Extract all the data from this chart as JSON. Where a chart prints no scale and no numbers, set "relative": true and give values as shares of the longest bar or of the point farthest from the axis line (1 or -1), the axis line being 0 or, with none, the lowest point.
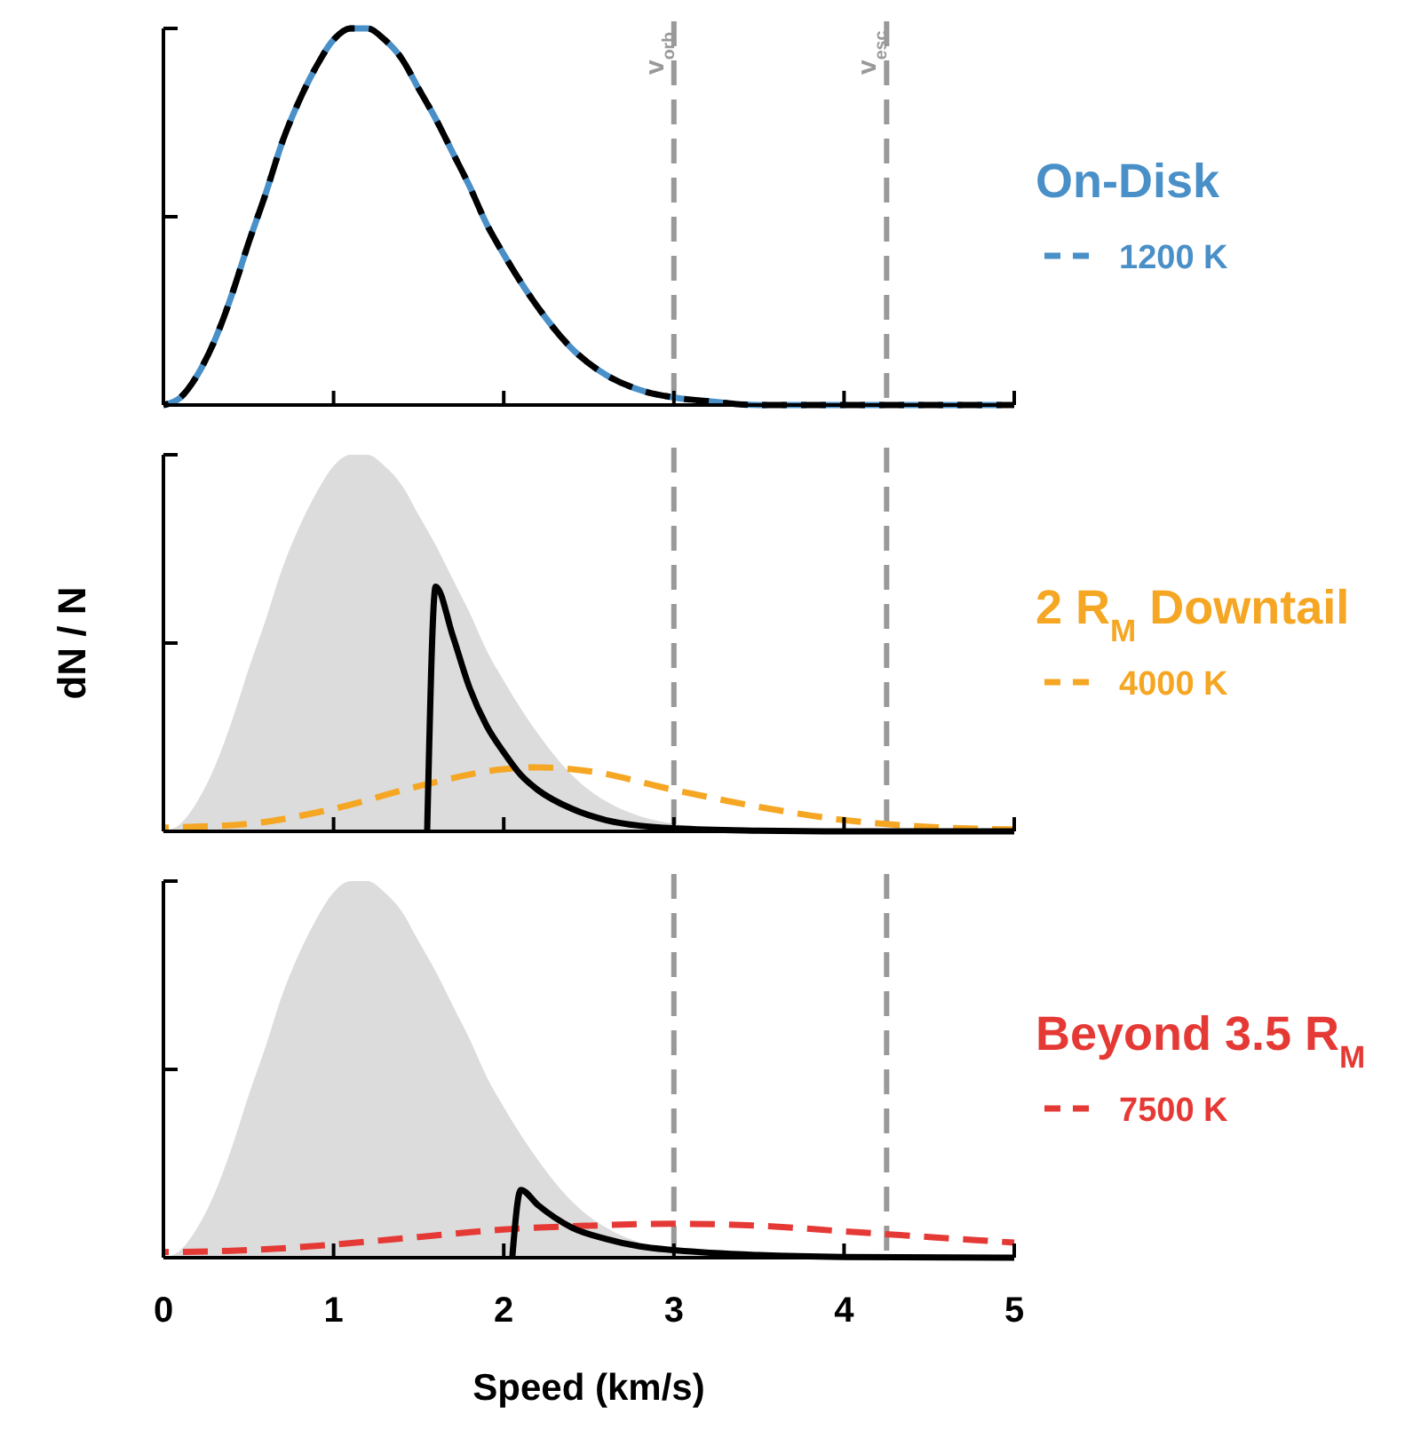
{
  "chart_data": [
    {
      "type": "line",
      "legend_title": "On-Disk",
      "relative": true,
      "xlim": [
        0,
        5
      ],
      "xticks": [
        0,
        1,
        2,
        3,
        4,
        5
      ],
      "tick_labels": false,
      "legend": "right",
      "grid": false,
      "ref_lines": [
        {
          "axis": "x",
          "value": 3,
          "label": "v$_{orb}$",
          "color": "#999999",
          "line_style": "dashed"
        },
        {
          "axis": "x",
          "value": 4.25,
          "label": "v$_{esc}$",
          "color": "#999999",
          "line_style": "dashed"
        }
      ],
      "series": [
        {
          "name": "1200 K",
          "color": "#4a90c8",
          "line_style": "dashed",
          "x": [
            0,
            0.1,
            0.2,
            0.3,
            0.4,
            0.5,
            0.6,
            0.7,
            0.8,
            0.9,
            1.0,
            1.1,
            1.15,
            1.2,
            1.3,
            1.4,
            1.5,
            1.6,
            1.7,
            1.8,
            1.9,
            2.0,
            2.2,
            2.4,
            2.6,
            2.8,
            3.0,
            3.2,
            3.5,
            4,
            5
          ],
          "values": [
            0,
            0.02,
            0.08,
            0.17,
            0.29,
            0.43,
            0.56,
            0.7,
            0.81,
            0.9,
            0.97,
            1.0,
            1.0,
            1.0,
            0.97,
            0.92,
            0.84,
            0.76,
            0.67,
            0.58,
            0.48,
            0.4,
            0.26,
            0.15,
            0.08,
            0.04,
            0.02,
            0.01,
            0,
            0,
            0
          ]
        },
        {
          "color": "#000000",
          "line_style": "dashed",
          "x": [
            0,
            0.1,
            0.2,
            0.3,
            0.4,
            0.5,
            0.6,
            0.7,
            0.8,
            0.9,
            1.0,
            1.1,
            1.15,
            1.2,
            1.3,
            1.4,
            1.5,
            1.6,
            1.7,
            1.8,
            1.9,
            2.0,
            2.2,
            2.4,
            2.6,
            2.8,
            3.0,
            3.2,
            3.5,
            4,
            5
          ],
          "values": [
            0,
            0.02,
            0.08,
            0.17,
            0.29,
            0.43,
            0.56,
            0.7,
            0.81,
            0.9,
            0.97,
            1.0,
            1.0,
            1.0,
            0.97,
            0.92,
            0.84,
            0.76,
            0.67,
            0.58,
            0.48,
            0.4,
            0.26,
            0.15,
            0.08,
            0.04,
            0.02,
            0.01,
            0,
            0,
            0
          ]
        }
      ]
    },
    {
      "type": "line",
      "legend_title": "2 R$_{M}$ Downtail",
      "ylabel": "dN / N",
      "relative": true,
      "xlim": [
        0,
        5
      ],
      "xticks": [
        0,
        1,
        2,
        3,
        4,
        5
      ],
      "tick_labels": false,
      "legend": "right",
      "grid": false,
      "ref_lines": [
        {
          "axis": "x",
          "value": 3,
          "label": null,
          "color": "#999999",
          "line_style": "dashed"
        },
        {
          "axis": "x",
          "value": 4.25,
          "label": null,
          "color": "#999999",
          "line_style": "dashed"
        }
      ],
      "series": [
        {
          "type": "area",
          "color": "#dcdcdc",
          "x": [
            0,
            0.1,
            0.2,
            0.3,
            0.4,
            0.5,
            0.6,
            0.7,
            0.8,
            0.9,
            1.0,
            1.1,
            1.15,
            1.2,
            1.3,
            1.4,
            1.5,
            1.6,
            1.7,
            1.8,
            1.9,
            2.0,
            2.2,
            2.4,
            2.6,
            2.8,
            3.0,
            3.2,
            3.5,
            4,
            5
          ],
          "values": [
            0,
            0.02,
            0.08,
            0.17,
            0.29,
            0.43,
            0.56,
            0.7,
            0.81,
            0.9,
            0.97,
            1.0,
            1.0,
            1.0,
            0.97,
            0.92,
            0.84,
            0.76,
            0.67,
            0.58,
            0.48,
            0.4,
            0.26,
            0.15,
            0.08,
            0.04,
            0.02,
            0.01,
            0,
            0,
            0
          ]
        },
        {
          "name": "4000 K",
          "color": "#f5a623",
          "line_style": "dashed",
          "x": [
            0,
            0.5,
            1,
            1.5,
            2,
            2.2,
            2.5,
            3,
            3.5,
            4,
            4.5,
            5
          ],
          "values": [
            0.01,
            0.02,
            0.06,
            0.12,
            0.165,
            0.17,
            0.16,
            0.11,
            0.065,
            0.03,
            0.012,
            0.005
          ]
        },
        {
          "color": "#000000",
          "line_style": "solid",
          "x": [
            1.55,
            1.6,
            1.7,
            1.8,
            1.9,
            2.0,
            2.1,
            2.2,
            2.4,
            2.6,
            2.8,
            3.0,
            3.5,
            4,
            5
          ],
          "values": [
            0,
            0.65,
            0.52,
            0.38,
            0.28,
            0.21,
            0.15,
            0.11,
            0.06,
            0.03,
            0.015,
            0.008,
            0.002,
            0,
            0
          ]
        }
      ]
    },
    {
      "type": "line",
      "legend_title": "Beyond 3.5 R$_{M}$",
      "xlabel": "Speed (km/s)",
      "relative": true,
      "xlim": [
        0,
        5
      ],
      "xticks": [
        0,
        1,
        2,
        3,
        4,
        5
      ],
      "tick_labels": "x",
      "legend": "right",
      "grid": false,
      "ref_lines": [
        {
          "axis": "x",
          "value": 3,
          "label": null,
          "color": "#999999",
          "line_style": "dashed"
        },
        {
          "axis": "x",
          "value": 4.25,
          "label": null,
          "color": "#999999",
          "line_style": "dashed"
        }
      ],
      "series": [
        {
          "type": "area",
          "color": "#dcdcdc",
          "x": [
            0,
            0.1,
            0.2,
            0.3,
            0.4,
            0.5,
            0.6,
            0.7,
            0.8,
            0.9,
            1.0,
            1.1,
            1.15,
            1.2,
            1.3,
            1.4,
            1.5,
            1.6,
            1.7,
            1.8,
            1.9,
            2.0,
            2.2,
            2.4,
            2.6,
            2.8,
            3.0,
            3.2,
            3.5,
            4,
            5
          ],
          "values": [
            0,
            0.02,
            0.08,
            0.17,
            0.29,
            0.43,
            0.56,
            0.7,
            0.81,
            0.9,
            0.97,
            1.0,
            1.0,
            1.0,
            0.97,
            0.92,
            0.84,
            0.76,
            0.67,
            0.58,
            0.48,
            0.4,
            0.26,
            0.15,
            0.08,
            0.04,
            0.02,
            0.01,
            0,
            0,
            0
          ]
        },
        {
          "name": "7500 K",
          "color": "#e53935",
          "line_style": "dashed",
          "x": [
            0,
            0.5,
            1,
            1.5,
            2,
            2.5,
            3,
            3.5,
            4,
            4.5,
            5
          ],
          "values": [
            0.015,
            0.02,
            0.035,
            0.055,
            0.075,
            0.085,
            0.09,
            0.085,
            0.07,
            0.055,
            0.04
          ]
        },
        {
          "color": "#000000",
          "line_style": "solid",
          "x": [
            2.05,
            2.1,
            2.2,
            2.4,
            2.6,
            2.8,
            3.0,
            3.5,
            4,
            5
          ],
          "values": [
            0,
            0.18,
            0.14,
            0.08,
            0.05,
            0.03,
            0.02,
            0.007,
            0.002,
            0
          ]
        }
      ]
    }
  ]
}
